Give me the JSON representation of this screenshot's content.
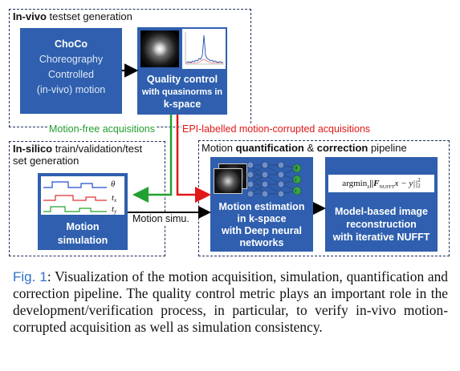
{
  "invivo": {
    "label_bold": "In-vivo",
    "label_rest": " testset generation",
    "choco": {
      "title": "ChoCo",
      "line1": "Choreography",
      "line2": "Controlled",
      "line3": "(in-vivo) motion"
    },
    "qc": {
      "title": "Quality control",
      "line1": "with quasinorms in",
      "line2": "k-space"
    }
  },
  "arrows": {
    "motion_free": "Motion-free acquisitions",
    "epi": "EPI-labelled motion-corrupted acquisitions",
    "motion_simu": "Motion simu."
  },
  "insilico": {
    "label_bold": "In-silico",
    "label_rest": " train/validation/test",
    "label_line2": "set generation",
    "sim": {
      "line1": "Motion",
      "line2": "simulation",
      "theta": "θ",
      "tx": "t",
      "tx_sub": "x",
      "ty": "t",
      "ty_sub": "y"
    }
  },
  "pipeline": {
    "label_prefix": "Motion ",
    "label_bold1": "quantification",
    "label_mid": " & ",
    "label_bold2": "correction",
    "label_suffix": " pipeline",
    "estimation": {
      "line1": "Motion estimation",
      "line2": "in k-space",
      "line3": "with Deep neural",
      "line4": "networks"
    },
    "recon": {
      "formula": "argmin",
      "formula_sub": "x",
      "formula_body": "||F",
      "formula_F_sub": "NUFFT",
      "formula_tail": "x − y||",
      "formula_exp": "2",
      "formula_exp_sub": "2",
      "line1": "Model-based image",
      "line2": "reconstruction",
      "line3": "with iterative NUFFT"
    }
  },
  "caption": {
    "fig": "Fig. 1",
    "text": ": Visualization of the motion acquisition, simulation, quantification and correction pipeline. The quality control metric plays an important role in the development/verification process, in particular, to verify in-vivo motion-corrupted acquisition as well as simulation consistency."
  },
  "colors": {
    "box_blue": "#2f5fae",
    "green_arrow": "#22a030",
    "red_arrow": "#e01818",
    "caption_link": "#2f6fc9"
  }
}
